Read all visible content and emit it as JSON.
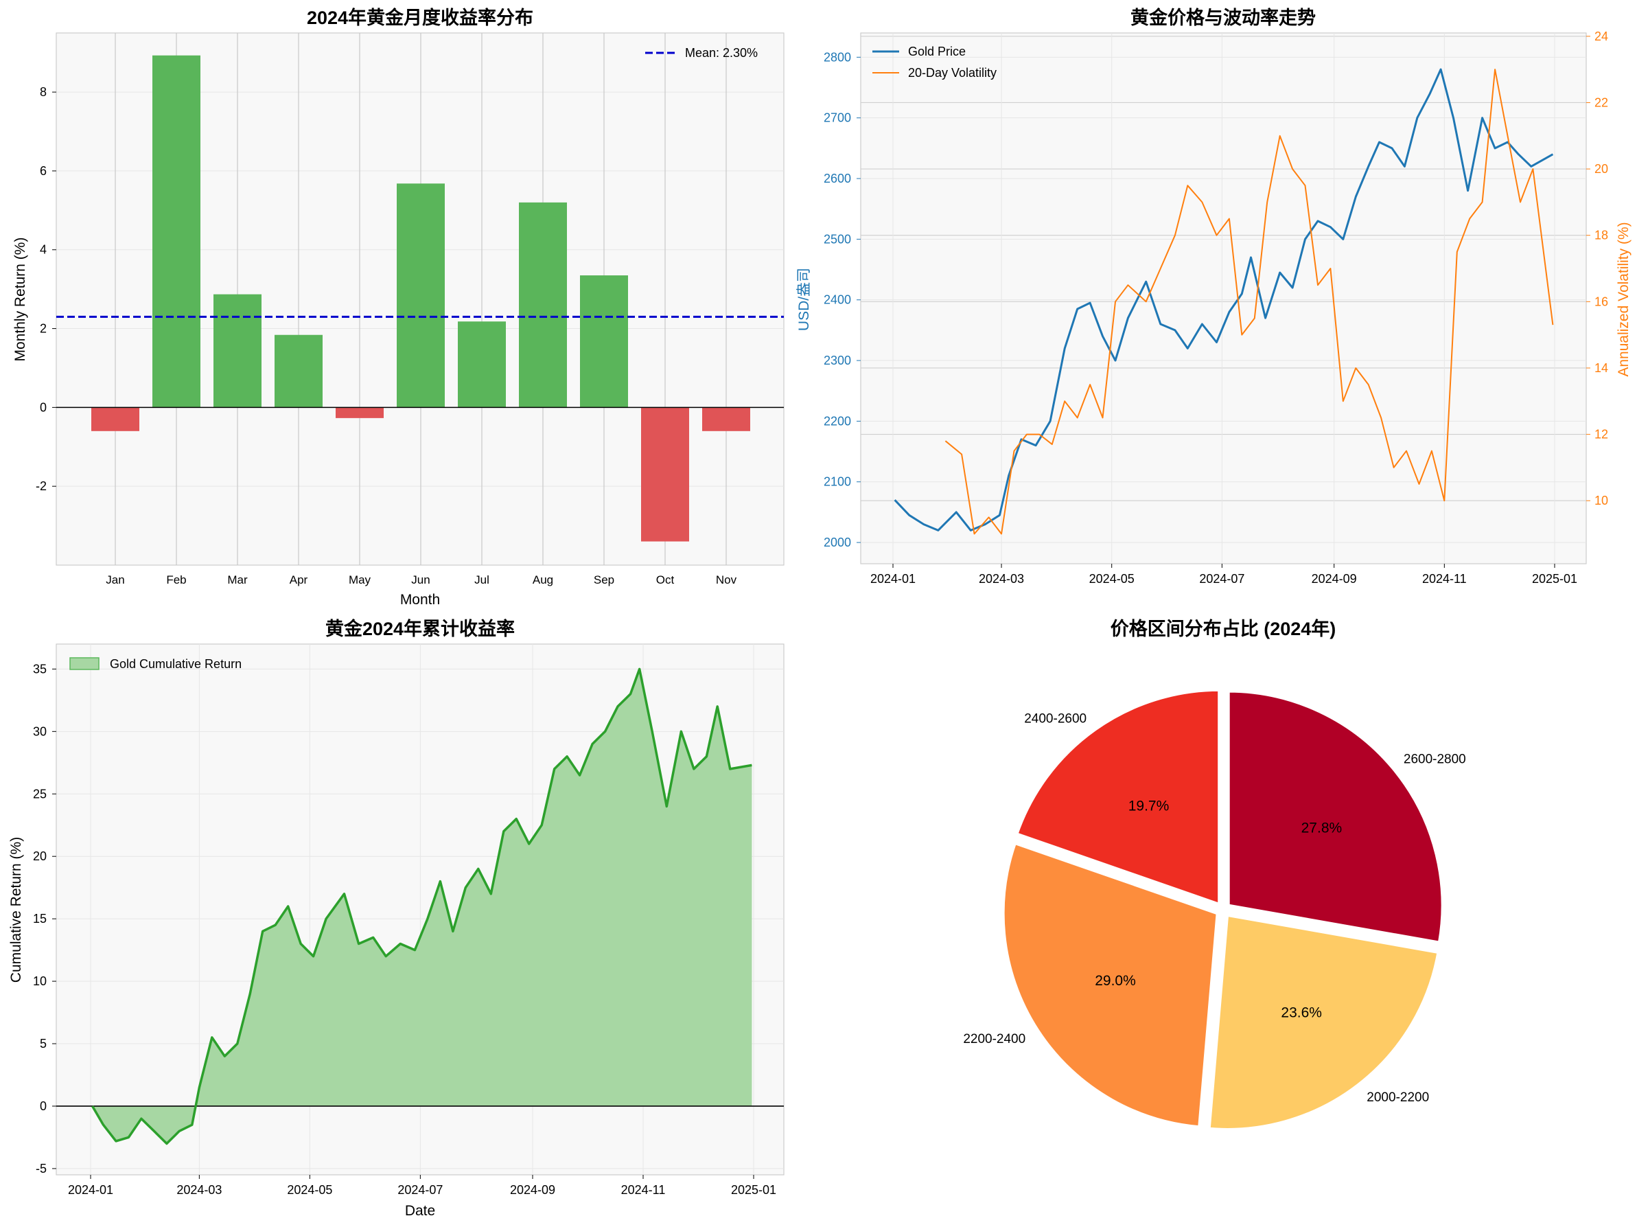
{
  "chart_data": [
    {
      "type": "bar",
      "title": "2024年黄金月度收益率分布",
      "xlabel": "Month",
      "ylabel": "Monthly Return (%)",
      "categories": [
        "Jan",
        "Feb",
        "Mar",
        "Apr",
        "May",
        "Jun",
        "Jul",
        "Aug",
        "Sep",
        "Oct",
        "Nov"
      ],
      "values": [
        -0.6,
        8.93,
        2.87,
        1.84,
        -0.27,
        5.68,
        2.18,
        5.2,
        3.35,
        -3.4,
        -0.6
      ],
      "positive_color": "#5ab55a",
      "negative_color": "#e05456",
      "mean_line": {
        "value": 2.3,
        "label": "Mean: 2.30%",
        "color": "#0000cc"
      },
      "ylim": [
        -4,
        9.5
      ],
      "yticks": [
        -2,
        0,
        2,
        4,
        6,
        8
      ],
      "grid": true,
      "legend": "top-right"
    },
    {
      "type": "line",
      "title": "黄金价格与波动率走势",
      "ylabel_left": "USD/盎司",
      "ylabel_right": "Annualized Volatility (%)",
      "left_color": "#1f77b4",
      "right_color": "#ff7f0e",
      "xticks": [
        "2024-01",
        "2024-03",
        "2024-05",
        "2024-07",
        "2024-09",
        "2024-11",
        "2025-01"
      ],
      "yticks_left": [
        2000,
        2100,
        2200,
        2300,
        2400,
        2500,
        2600,
        2700,
        2800
      ],
      "yticks_right": [
        10,
        12,
        14,
        16,
        18,
        20,
        22,
        24
      ],
      "ylim_left": [
        1965,
        2840
      ],
      "ylim_right": [
        8.1,
        24.1
      ],
      "legend": "top-left",
      "series": [
        {
          "name": "Gold Price",
          "axis": "left",
          "x": [
            "2024-01-02",
            "2024-01-10",
            "2024-01-18",
            "2024-01-26",
            "2024-02-05",
            "2024-02-13",
            "2024-02-21",
            "2024-02-29",
            "2024-03-05",
            "2024-03-12",
            "2024-03-20",
            "2024-03-28",
            "2024-04-05",
            "2024-04-12",
            "2024-04-19",
            "2024-04-26",
            "2024-05-03",
            "2024-05-10",
            "2024-05-20",
            "2024-05-28",
            "2024-06-05",
            "2024-06-12",
            "2024-06-20",
            "2024-06-28",
            "2024-07-05",
            "2024-07-12",
            "2024-07-17",
            "2024-07-25",
            "2024-08-02",
            "2024-08-09",
            "2024-08-16",
            "2024-08-23",
            "2024-08-30",
            "2024-09-06",
            "2024-09-13",
            "2024-09-20",
            "2024-09-26",
            "2024-10-03",
            "2024-10-10",
            "2024-10-17",
            "2024-10-24",
            "2024-10-30",
            "2024-11-06",
            "2024-11-14",
            "2024-11-22",
            "2024-11-29",
            "2024-12-06",
            "2024-12-12",
            "2024-12-19",
            "2024-12-31"
          ],
          "values": [
            2070,
            2045,
            2030,
            2020,
            2050,
            2020,
            2030,
            2045,
            2110,
            2170,
            2160,
            2200,
            2320,
            2385,
            2395,
            2340,
            2300,
            2370,
            2430,
            2360,
            2350,
            2320,
            2360,
            2330,
            2380,
            2410,
            2470,
            2370,
            2445,
            2420,
            2500,
            2530,
            2520,
            2500,
            2570,
            2620,
            2660,
            2650,
            2620,
            2700,
            2740,
            2780,
            2700,
            2580,
            2700,
            2650,
            2660,
            2640,
            2620,
            2640
          ]
        },
        {
          "name": "20-Day Volatility",
          "axis": "right",
          "x": [
            "2024-01-30",
            "2024-02-08",
            "2024-02-15",
            "2024-02-23",
            "2024-03-01",
            "2024-03-08",
            "2024-03-15",
            "2024-03-22",
            "2024-03-29",
            "2024-04-05",
            "2024-04-12",
            "2024-04-19",
            "2024-04-26",
            "2024-05-03",
            "2024-05-10",
            "2024-05-20",
            "2024-05-28",
            "2024-06-05",
            "2024-06-12",
            "2024-06-20",
            "2024-06-28",
            "2024-07-05",
            "2024-07-12",
            "2024-07-19",
            "2024-07-26",
            "2024-08-02",
            "2024-08-09",
            "2024-08-16",
            "2024-08-23",
            "2024-08-30",
            "2024-09-06",
            "2024-09-13",
            "2024-09-20",
            "2024-09-27",
            "2024-10-04",
            "2024-10-11",
            "2024-10-18",
            "2024-10-25",
            "2024-11-01",
            "2024-11-08",
            "2024-11-15",
            "2024-11-22",
            "2024-11-29",
            "2024-12-06",
            "2024-12-13",
            "2024-12-20",
            "2024-12-31"
          ],
          "values": [
            11.8,
            11.4,
            9.0,
            9.5,
            9.0,
            11.5,
            12.0,
            12.0,
            11.7,
            13.0,
            12.5,
            13.5,
            12.5,
            16.0,
            16.5,
            16.0,
            17.0,
            18.0,
            19.5,
            19.0,
            18.0,
            18.5,
            15.0,
            15.5,
            19.0,
            21.0,
            20.0,
            19.5,
            16.5,
            17.0,
            13.0,
            14.0,
            13.5,
            12.5,
            11.0,
            11.5,
            10.5,
            11.5,
            10.0,
            17.5,
            18.5,
            19.0,
            23.0,
            21.0,
            19.0,
            20.0,
            15.3
          ]
        }
      ]
    },
    {
      "type": "area",
      "title": "黄金2024年累计收益率",
      "xlabel": "Date",
      "ylabel": "Cumulative Return (%)",
      "xticks": [
        "2024-01",
        "2024-03",
        "2024-05",
        "2024-07",
        "2024-09",
        "2024-11",
        "2025-01"
      ],
      "yticks": [
        -5,
        0,
        5,
        10,
        15,
        20,
        25,
        30,
        35
      ],
      "ylim": [
        -5.5,
        37
      ],
      "line_color": "#2ca02c",
      "fill_color": "#a7d7a3",
      "legend": "top-left",
      "series": [
        {
          "name": "Gold Cumulative Return",
          "x": [
            "2024-01-02",
            "2024-01-08",
            "2024-01-15",
            "2024-01-22",
            "2024-01-29",
            "2024-02-05",
            "2024-02-12",
            "2024-02-19",
            "2024-02-26",
            "2024-03-01",
            "2024-03-08",
            "2024-03-15",
            "2024-03-22",
            "2024-03-29",
            "2024-04-05",
            "2024-04-12",
            "2024-04-19",
            "2024-04-26",
            "2024-05-03",
            "2024-05-10",
            "2024-05-20",
            "2024-05-28",
            "2024-06-05",
            "2024-06-12",
            "2024-06-20",
            "2024-06-28",
            "2024-07-05",
            "2024-07-12",
            "2024-07-19",
            "2024-07-26",
            "2024-08-02",
            "2024-08-09",
            "2024-08-16",
            "2024-08-23",
            "2024-08-30",
            "2024-09-06",
            "2024-09-13",
            "2024-09-20",
            "2024-09-27",
            "2024-10-04",
            "2024-10-11",
            "2024-10-18",
            "2024-10-25",
            "2024-10-30",
            "2024-11-06",
            "2024-11-14",
            "2024-11-22",
            "2024-11-29",
            "2024-12-06",
            "2024-12-12",
            "2024-12-19",
            "2024-12-31"
          ],
          "values": [
            0,
            -1.5,
            -2.8,
            -2.5,
            -1.0,
            -2.0,
            -3.0,
            -2.0,
            -1.5,
            1.5,
            5.5,
            4.0,
            5.0,
            9.0,
            14.0,
            14.5,
            16.0,
            13.0,
            12.0,
            15.0,
            17.0,
            13.0,
            13.5,
            12.0,
            13.0,
            12.5,
            15.0,
            18.0,
            14.0,
            17.5,
            19.0,
            17.0,
            22.0,
            23.0,
            21.0,
            22.5,
            27.0,
            28.0,
            26.5,
            29.0,
            30.0,
            32.0,
            33.0,
            35.0,
            30.0,
            24.0,
            30.0,
            27.0,
            28.0,
            32.0,
            27.0,
            27.3
          ]
        }
      ]
    },
    {
      "type": "pie",
      "title": "价格区间分布占比 (2024年)",
      "labels": [
        "2600-2800",
        "2000-2200",
        "2200-2400",
        "2400-2600"
      ],
      "values": [
        27.8,
        23.6,
        29.0,
        19.7
      ],
      "pct_labels": [
        "27.8%",
        "23.6%",
        "29.0%",
        "19.7%"
      ],
      "colors": [
        "#b10026",
        "#fecb65",
        "#fd8d3c",
        "#ee2d22"
      ],
      "exploded": true
    }
  ]
}
